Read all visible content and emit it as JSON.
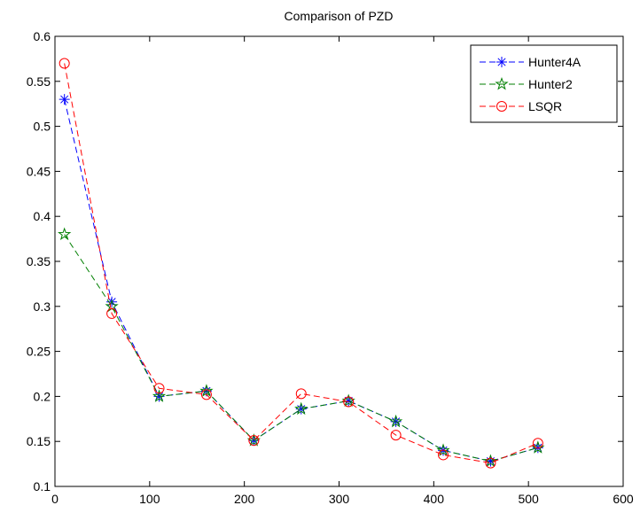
{
  "chart_data": {
    "type": "line",
    "title": "Comparison of PZD",
    "xlabel": "",
    "ylabel": "",
    "xlim": [
      0,
      600
    ],
    "ylim": [
      0.1,
      0.6
    ],
    "x_ticks": [
      0,
      100,
      200,
      300,
      400,
      500,
      600
    ],
    "y_ticks": [
      0.1,
      0.15,
      0.2,
      0.25,
      0.3,
      0.35,
      0.4,
      0.45,
      0.5,
      0.55,
      0.6
    ],
    "x_tick_labels": [
      "0",
      "100",
      "200",
      "300",
      "400",
      "500",
      "600"
    ],
    "y_tick_labels": [
      "0.1",
      "0.15",
      "0.2",
      "0.25",
      "0.3",
      "0.35",
      "0.4",
      "0.45",
      "0.5",
      "0.55",
      "0.6"
    ],
    "grid": false,
    "legend_position": "top-right",
    "x": [
      10,
      60,
      110,
      160,
      210,
      260,
      310,
      360,
      410,
      460,
      510
    ],
    "series": [
      {
        "name": "Hunter4A",
        "color": "#0000ff",
        "marker": "asterisk",
        "linestyle": "dashed",
        "values": [
          0.53,
          0.305,
          0.2,
          0.206,
          0.151,
          0.186,
          0.195,
          0.172,
          0.14,
          0.128,
          0.143
        ]
      },
      {
        "name": "Hunter2",
        "color": "#007f00",
        "marker": "pentagram",
        "linestyle": "dashed",
        "values": [
          0.38,
          0.3,
          0.2,
          0.206,
          0.151,
          0.186,
          0.195,
          0.172,
          0.14,
          0.128,
          0.143
        ]
      },
      {
        "name": "LSQR",
        "color": "#ff0000",
        "marker": "circle",
        "linestyle": "dashed",
        "values": [
          0.57,
          0.292,
          0.209,
          0.202,
          0.151,
          0.203,
          0.194,
          0.157,
          0.135,
          0.126,
          0.148
        ]
      }
    ]
  }
}
